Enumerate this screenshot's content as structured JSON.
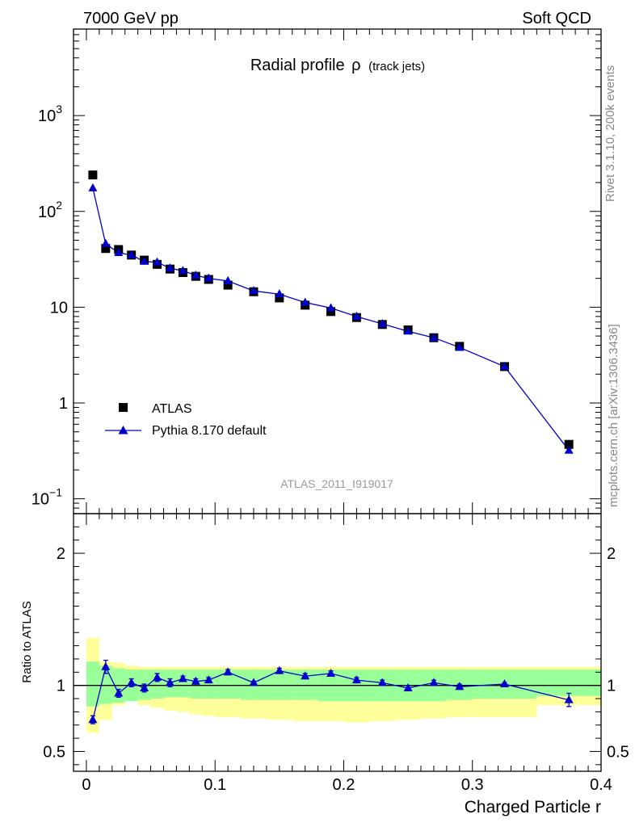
{
  "header": {
    "left": "7000 GeV pp",
    "right": "Soft QCD"
  },
  "side_labels": {
    "rivet": "Rivet 3.1.10,  200k events",
    "mcplots": "mcplots.cern.ch [arXiv:1306.3436]"
  },
  "chart_data": [
    {
      "type": "scatter",
      "title": "Radial profile",
      "title_symbol": "ρ",
      "title_suffix": "(track jets)",
      "watermark": "ATLAS_2011_I919017",
      "yscale": "log",
      "xlim": [
        -0.01,
        0.4
      ],
      "ylim": [
        0.07,
        8000
      ],
      "yticks": [
        {
          "value": 0.1,
          "base": "10",
          "exp": "−1"
        },
        {
          "value": 1,
          "base": "1",
          "exp": ""
        },
        {
          "value": 10,
          "base": "10",
          "exp": ""
        },
        {
          "value": 100,
          "base": "10",
          "exp": "2"
        },
        {
          "value": 1000,
          "base": "10",
          "exp": "3"
        }
      ],
      "legend_position": "bottom-left",
      "series": [
        {
          "name": "ATLAS",
          "marker": "square",
          "color": "#000000",
          "x": [
            0.005,
            0.015,
            0.025,
            0.035,
            0.045,
            0.055,
            0.065,
            0.075,
            0.085,
            0.095,
            0.11,
            0.13,
            0.15,
            0.17,
            0.19,
            0.21,
            0.23,
            0.25,
            0.27,
            0.29,
            0.325,
            0.375
          ],
          "y": [
            240,
            41,
            40,
            35,
            31,
            28,
            25,
            23,
            21,
            19.5,
            17,
            14.5,
            12.5,
            10.5,
            9.0,
            7.8,
            6.6,
            5.8,
            4.8,
            3.9,
            2.4,
            0.37
          ]
        },
        {
          "name": "Pythia 8.170 default",
          "marker": "triangle",
          "color": "#0000cc",
          "x": [
            0.005,
            0.015,
            0.025,
            0.035,
            0.045,
            0.055,
            0.065,
            0.075,
            0.085,
            0.095,
            0.11,
            0.13,
            0.15,
            0.17,
            0.19,
            0.21,
            0.23,
            0.25,
            0.27,
            0.29,
            0.325,
            0.375
          ],
          "y": [
            175,
            46,
            37,
            35,
            30,
            29.5,
            25.5,
            24,
            21.5,
            20,
            18.8,
            14.8,
            13.7,
            11.2,
            9.8,
            8.0,
            6.7,
            5.6,
            4.8,
            3.8,
            2.4,
            0.32
          ]
        }
      ]
    },
    {
      "type": "scatter",
      "ylabel": "Ratio to ATLAS",
      "xlabel": "Charged Particle r",
      "xlim": [
        -0.01,
        0.4
      ],
      "ylim": [
        0.35,
        2.3
      ],
      "yticks": [
        {
          "value": 0.5,
          "label": "0.5"
        },
        {
          "value": 1,
          "label": "1"
        },
        {
          "value": 2,
          "label": "2"
        }
      ],
      "xticks": [
        {
          "value": 0,
          "label": "0"
        },
        {
          "value": 0.1,
          "label": "0.1"
        },
        {
          "value": 0.2,
          "label": "0.2"
        },
        {
          "value": 0.3,
          "label": "0.3"
        },
        {
          "value": 0.4,
          "label": "0.4"
        }
      ],
      "reference_line": 1,
      "uncertainty_bands": {
        "bin_edges": [
          0.0,
          0.01,
          0.02,
          0.03,
          0.04,
          0.05,
          0.06,
          0.07,
          0.08,
          0.09,
          0.1,
          0.12,
          0.14,
          0.16,
          0.18,
          0.2,
          0.22,
          0.24,
          0.26,
          0.28,
          0.3,
          0.35,
          0.4
        ],
        "green_low": [
          0.84,
          0.86,
          0.87,
          0.88,
          0.89,
          0.9,
          0.91,
          0.91,
          0.9,
          0.9,
          0.9,
          0.89,
          0.89,
          0.89,
          0.88,
          0.88,
          0.88,
          0.88,
          0.88,
          0.89,
          0.9,
          0.92
        ],
        "green_high": [
          1.18,
          1.15,
          1.13,
          1.12,
          1.12,
          1.12,
          1.12,
          1.12,
          1.12,
          1.12,
          1.12,
          1.12,
          1.12,
          1.12,
          1.12,
          1.12,
          1.12,
          1.12,
          1.12,
          1.12,
          1.12,
          1.12
        ],
        "yellow_low": [
          0.64,
          0.74,
          0.85,
          0.89,
          0.85,
          0.83,
          0.81,
          0.8,
          0.78,
          0.77,
          0.76,
          0.75,
          0.74,
          0.73,
          0.73,
          0.72,
          0.73,
          0.74,
          0.75,
          0.76,
          0.76,
          0.85
        ],
        "yellow_high": [
          1.36,
          1.18,
          1.17,
          1.15,
          1.14,
          1.14,
          1.14,
          1.14,
          1.14,
          1.14,
          1.14,
          1.14,
          1.14,
          1.14,
          1.14,
          1.14,
          1.14,
          1.14,
          1.14,
          1.14,
          1.14,
          1.14
        ],
        "green_color": "#99ff99",
        "yellow_color": "#ffff99"
      },
      "series": [
        {
          "name": "Pythia 8.170 default",
          "marker": "triangle",
          "color": "#0000cc",
          "x": [
            0.005,
            0.015,
            0.025,
            0.035,
            0.045,
            0.055,
            0.065,
            0.075,
            0.085,
            0.095,
            0.11,
            0.13,
            0.15,
            0.17,
            0.19,
            0.21,
            0.23,
            0.25,
            0.27,
            0.29,
            0.325,
            0.375
          ],
          "y": [
            0.74,
            1.14,
            0.94,
            1.02,
            0.98,
            1.06,
            1.02,
            1.05,
            1.03,
            1.04,
            1.1,
            1.02,
            1.11,
            1.07,
            1.09,
            1.04,
            1.02,
            0.98,
            1.02,
            0.99,
            1.01,
            0.89
          ],
          "yerr": [
            0.03,
            0.05,
            0.03,
            0.03,
            0.03,
            0.03,
            0.03,
            0.02,
            0.02,
            0.02,
            0.02,
            0.01,
            0.02,
            0.02,
            0.02,
            0.02,
            0.02,
            0.02,
            0.02,
            0.02,
            0.01,
            0.05
          ]
        }
      ]
    }
  ]
}
